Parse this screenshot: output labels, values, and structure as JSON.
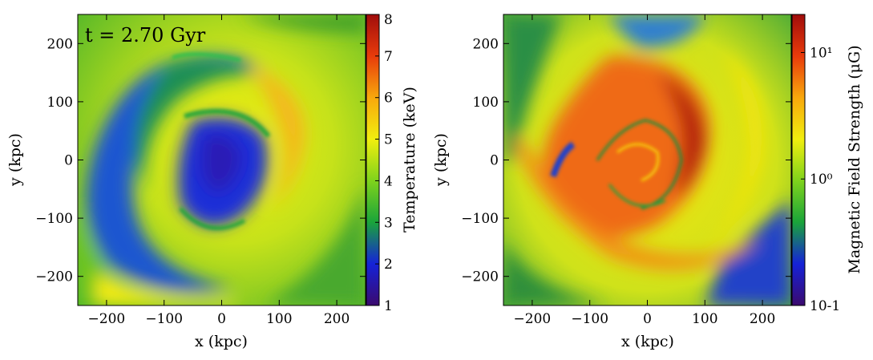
{
  "chart_data": [
    {
      "type": "heatmap",
      "annotation": "t = 2.70 Gyr",
      "xlabel": "x  (kpc)",
      "ylabel": "y  (kpc)",
      "xlim": [
        -250,
        250
      ],
      "ylim": [
        -250,
        250
      ],
      "x_ticks": [
        -200,
        -100,
        0,
        100,
        200
      ],
      "y_ticks": [
        -200,
        -100,
        0,
        100,
        200
      ],
      "x_tick_labels": [
        "−200",
        "−100",
        "0",
        "100",
        "200"
      ],
      "y_tick_labels": [
        "−200",
        "−100",
        "0",
        "100",
        "200"
      ],
      "colorbar": {
        "label": "Temperature  (keV)",
        "scale": "linear",
        "range": [
          1,
          8
        ],
        "ticks": [
          1,
          2,
          3,
          4,
          5,
          6,
          7,
          8
        ],
        "tick_labels": [
          "1",
          "2",
          "3",
          "4",
          "5",
          "6",
          "7",
          "8"
        ],
        "colormap": [
          "#3b0a6e",
          "#1522d8",
          "#1aa43a",
          "#7fd31c",
          "#f1ee0e",
          "#f8a80c",
          "#e83b0b",
          "#a00d0b"
        ]
      }
    },
    {
      "type": "heatmap",
      "xlabel": "x  (kpc)",
      "ylabel": "y  (kpc)",
      "xlim": [
        -250,
        250
      ],
      "ylim": [
        -250,
        250
      ],
      "x_ticks": [
        -200,
        -100,
        0,
        100,
        200
      ],
      "y_ticks": [
        -200,
        -100,
        0,
        100,
        200
      ],
      "x_tick_labels": [
        "−200",
        "−100",
        "0",
        "100",
        "200"
      ],
      "y_tick_labels": [
        "−200",
        "−100",
        "0",
        "100",
        "200"
      ],
      "colorbar": {
        "label": "Magnetic Field Strength  (μG)",
        "scale": "log",
        "range": [
          0.1,
          20
        ],
        "ticks": [
          0.1,
          1,
          10
        ],
        "tick_labels": [
          "10-1",
          "10⁰",
          "10¹"
        ],
        "colormap": [
          "#3b0a6e",
          "#1522d8",
          "#1aa43a",
          "#7fd31c",
          "#f1ee0e",
          "#f8a80c",
          "#e83b0b",
          "#a00d0b"
        ]
      }
    }
  ]
}
